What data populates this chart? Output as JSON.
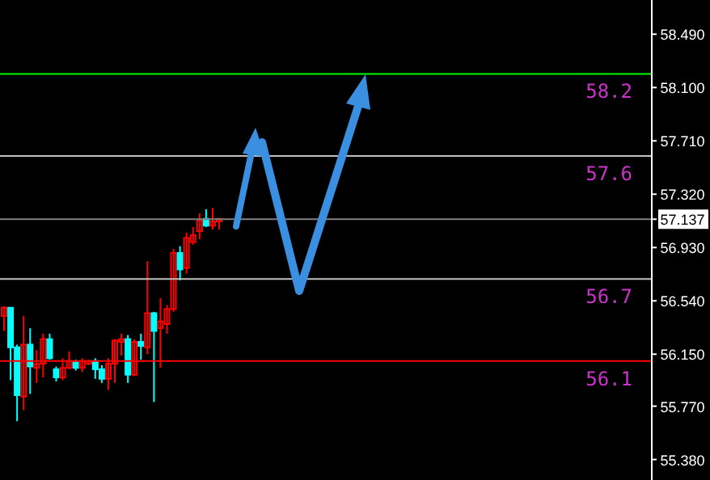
{
  "chart_data": {
    "type": "candlestick",
    "categories": [
      null,
      null,
      null,
      null,
      null,
      null,
      null,
      null,
      null,
      null,
      null,
      null,
      null,
      null,
      null,
      null,
      null,
      null,
      null,
      null,
      null,
      null,
      null,
      null,
      null,
      null,
      null,
      null,
      null,
      null,
      null,
      null,
      null,
      null,
      null,
      null,
      null,
      null,
      null,
      null,
      null,
      null,
      null,
      null,
      null,
      null,
      null,
      null,
      null,
      null,
      null,
      null,
      null,
      null,
      null,
      null,
      null,
      null,
      null,
      null,
      null,
      null,
      null,
      null,
      null,
      null,
      null,
      null,
      null,
      null,
      null,
      null,
      null,
      null,
      null,
      null,
      null,
      null,
      null,
      null,
      null,
      null,
      null,
      null,
      null,
      null,
      null,
      null,
      null,
      null,
      null,
      null,
      null,
      null,
      null,
      null,
      null,
      null,
      null,
      null
    ],
    "ohlc": [
      [
        56.43,
        56.5,
        56.32,
        56.49
      ],
      [
        56.49,
        56.49,
        55.96,
        56.2
      ],
      [
        56.2,
        56.22,
        55.66,
        55.85
      ],
      [
        55.84,
        56.43,
        55.74,
        56.22
      ],
      [
        56.22,
        56.34,
        55.86,
        56.06
      ],
      [
        56.05,
        56.18,
        55.94,
        56.08
      ],
      [
        56.08,
        56.3,
        55.98,
        56.26
      ],
      [
        56.26,
        56.3,
        56.11,
        56.12
      ],
      [
        56.04,
        56.06,
        55.95,
        55.98
      ],
      [
        55.98,
        56.12,
        55.96,
        56.05
      ],
      [
        56.05,
        56.17,
        56.04,
        56.1
      ],
      [
        56.09,
        56.11,
        56.03,
        56.05
      ],
      [
        56.05,
        56.12,
        56.02,
        56.1
      ],
      [
        56.08,
        56.11,
        56.07,
        56.1
      ],
      [
        56.1,
        56.12,
        55.97,
        56.04
      ],
      [
        56.04,
        56.07,
        55.94,
        55.97
      ],
      [
        55.97,
        56.12,
        55.89,
        56.08
      ],
      [
        56.08,
        56.26,
        55.94,
        56.25
      ],
      [
        56.24,
        56.3,
        56.14,
        56.26
      ],
      [
        56.26,
        56.29,
        55.94,
        56.0
      ],
      [
        56.0,
        56.26,
        55.99,
        56.24
      ],
      [
        56.24,
        56.3,
        56.11,
        56.21
      ],
      [
        56.2,
        56.83,
        56.15,
        56.45
      ],
      [
        56.45,
        56.46,
        55.8,
        56.32
      ],
      [
        56.34,
        56.56,
        56.05,
        56.39
      ],
      [
        56.37,
        56.51,
        56.3,
        56.48
      ],
      [
        56.48,
        56.92,
        56.46,
        56.89
      ],
      [
        56.89,
        56.94,
        56.69,
        56.77
      ],
      [
        56.78,
        57.04,
        56.74,
        57.0
      ],
      [
        56.97,
        57.08,
        56.95,
        57.02
      ],
      [
        57.05,
        57.18,
        56.99,
        57.13
      ],
      [
        57.14,
        57.21,
        57.08,
        57.09
      ],
      [
        57.09,
        57.22,
        57.06,
        57.12
      ],
      [
        57.12,
        57.14,
        57.06,
        57.14
      ],
      null,
      null,
      null,
      null,
      null,
      null,
      null,
      null,
      null,
      null,
      null,
      null,
      null,
      null,
      null,
      null,
      null,
      null,
      null,
      null,
      null,
      null,
      null,
      null,
      null,
      null,
      null,
      null,
      null,
      null,
      null,
      null,
      null,
      null,
      null,
      null,
      null,
      null,
      null,
      null,
      null,
      null,
      null,
      null,
      null,
      null,
      null,
      null,
      null,
      null,
      null,
      null,
      null,
      null,
      null,
      null,
      null,
      null,
      null,
      null,
      null,
      null,
      null,
      null,
      null,
      null
    ],
    "colors": [
      "#ff0000",
      "#00ffff",
      "#00ffff",
      "#ff0000",
      "#00ffff",
      "#ff0000",
      "#ff0000",
      "#00ffff",
      "#00ffff",
      "#ff0000",
      "#ff0000",
      "#00ffff",
      "#ff0000",
      "#ff0000",
      "#00ffff",
      "#00ffff",
      "#ff0000",
      "#ff0000",
      "#ff0000",
      "#00ffff",
      "#ff0000",
      "#00ffff",
      "#ff0000",
      "#00ffff",
      "#ff0000",
      "#ff0000",
      "#ff0000",
      "#00ffff",
      "#ff0000",
      "#ff0000",
      "#ff0000",
      "#00ffff",
      "#ff0000",
      "#ff0000",
      null,
      null,
      null,
      null,
      null,
      null,
      null,
      null,
      null,
      null,
      null,
      null,
      null,
      null,
      null,
      null,
      null,
      null,
      null,
      null,
      null,
      null,
      null,
      null,
      null,
      null,
      null,
      null,
      null,
      null,
      null,
      null,
      null,
      null,
      null,
      null,
      null,
      null,
      null,
      null,
      null,
      null,
      null,
      null,
      null,
      null,
      null,
      null,
      null,
      null,
      null,
      null,
      null,
      null,
      null,
      null,
      null,
      null,
      null,
      null,
      null,
      null,
      null,
      null,
      null,
      null
    ],
    "ylim": [
      55.23,
      58.74
    ],
    "yticks": [
      {
        "value": 58.49,
        "label": "58.490"
      },
      {
        "value": 58.1,
        "label": "58.100"
      },
      {
        "value": 57.71,
        "label": "57.710"
      },
      {
        "value": 57.32,
        "label": "57.320"
      },
      {
        "value": 57.137,
        "label": "57.137"
      },
      {
        "value": 56.93,
        "label": "56.930"
      },
      {
        "value": 56.54,
        "label": "56.540"
      },
      {
        "value": 56.15,
        "label": "56.150"
      },
      {
        "value": 55.77,
        "label": "55.770"
      },
      {
        "value": 55.38,
        "label": "55.380"
      }
    ],
    "tick_labels": "y",
    "ref_lines": [
      {
        "axis": "y",
        "value": 58.2,
        "label": "58.2",
        "color": "#00ff00"
      },
      {
        "axis": "y",
        "value": 57.6,
        "label": "57.6",
        "color": "#c0c0c0"
      },
      {
        "axis": "y",
        "value": 57.137,
        "color": "#808080"
      },
      {
        "axis": "y",
        "value": 56.7,
        "label": "56.7",
        "color": "#c0c0c0"
      },
      {
        "axis": "y",
        "value": 56.1,
        "label": "56.1",
        "color": "#ff0000"
      }
    ],
    "grid": false,
    "legend": false
  }
}
